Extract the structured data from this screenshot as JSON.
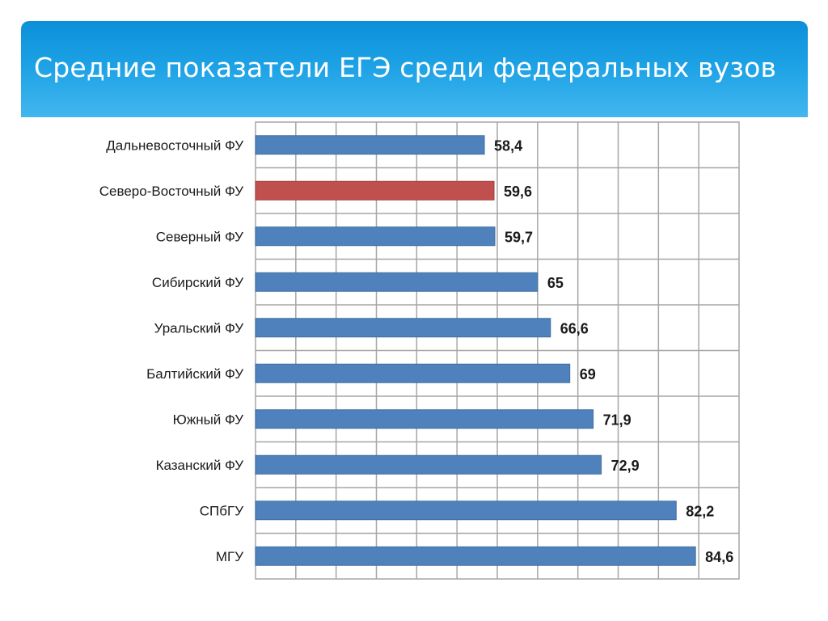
{
  "header": {
    "title": "Средние показатели ЕГЭ среди федеральных вузов"
  },
  "colors": {
    "header_top": "#0b8fd9",
    "header_bottom": "#42b6ee",
    "bar_default": "#4f81bd",
    "bar_highlight": "#c0504d",
    "grid": "#a6a6a6"
  },
  "chart_data": {
    "type": "bar",
    "orientation": "horizontal",
    "title": "",
    "xlabel": "",
    "ylabel": "",
    "xlim": [
      30,
      90
    ],
    "grid": true,
    "highlight_category": "Северо-Восточный ФУ",
    "categories": [
      "Дальневосточный ФУ",
      "Северо-Восточный ФУ",
      "Северный ФУ",
      "Сибирский ФУ",
      "Уральский ФУ",
      "Балтийский ФУ",
      "Южный ФУ",
      "Казанский ФУ",
      "СПбГУ",
      "МГУ"
    ],
    "values": [
      58.4,
      59.6,
      59.7,
      65,
      66.6,
      69,
      71.9,
      72.9,
      82.2,
      84.6
    ],
    "value_labels": [
      "58,4",
      "59,6",
      "59,7",
      "65",
      "66,6",
      "69",
      "71,9",
      "72,9",
      "82,2",
      "84,6"
    ]
  }
}
